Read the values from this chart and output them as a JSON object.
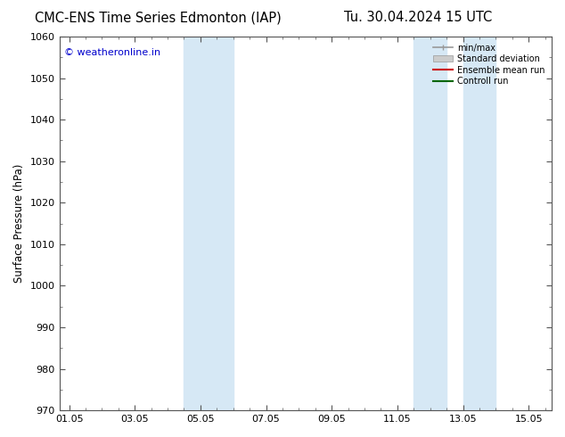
{
  "title_left": "CMC-ENS Time Series Edmonton (IAP)",
  "title_right": "Tu. 30.04.2024 15 UTC",
  "ylabel": "Surface Pressure (hPa)",
  "ylim": [
    970,
    1060
  ],
  "yticks": [
    970,
    980,
    990,
    1000,
    1010,
    1020,
    1030,
    1040,
    1050,
    1060
  ],
  "xtick_labels": [
    "01.05",
    "03.05",
    "05.05",
    "07.05",
    "09.05",
    "11.05",
    "13.05",
    "15.05"
  ],
  "xtick_positions": [
    0,
    2,
    4,
    6,
    8,
    10,
    12,
    14
  ],
  "xlim": [
    -0.3,
    14.7
  ],
  "shaded_regions": [
    {
      "start": 3.5,
      "end": 5.0
    },
    {
      "start": 10.5,
      "end": 11.5
    },
    {
      "start": 12.0,
      "end": 13.0
    }
  ],
  "shaded_color": "#d6e8f5",
  "background_color": "#ffffff",
  "watermark": "© weatheronline.in",
  "watermark_color": "#0000cc",
  "watermark_fontsize": 8,
  "legend_labels": [
    "min/max",
    "Standard deviation",
    "Ensemble mean run",
    "Controll run"
  ],
  "grid_color": "#cccccc",
  "title_fontsize": 10.5,
  "axis_fontsize": 8.5,
  "tick_fontsize": 8
}
